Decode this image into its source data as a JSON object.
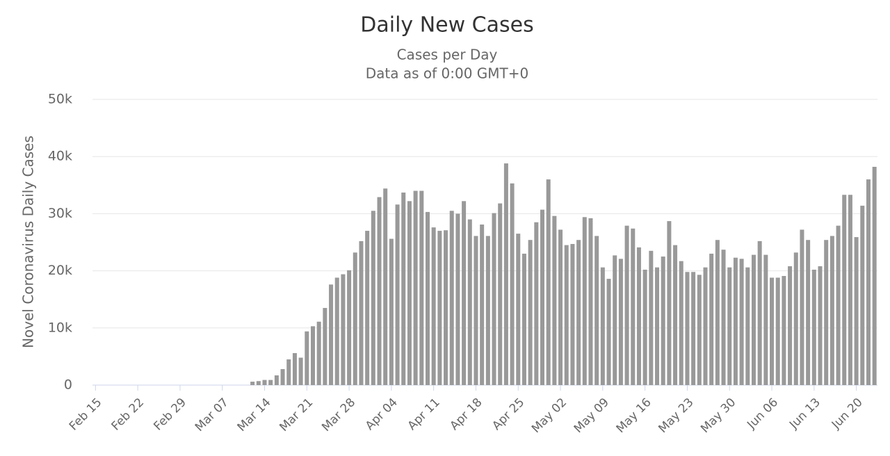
{
  "chart_data": {
    "type": "bar",
    "title": "Daily New Cases",
    "subtitle": [
      "Cases per Day",
      "Data as of 0:00 GMT+0"
    ],
    "y_label": "Novel Coronavirus Daily Cases",
    "color": "#999999",
    "grid": true,
    "ylim": [
      0,
      50000
    ],
    "yticks": [
      0,
      {
        "value": 10000,
        "label": "10k"
      },
      {
        "value": 20000,
        "label": "20k"
      },
      {
        "value": 30000,
        "label": "30k"
      },
      {
        "value": 40000,
        "label": "40k"
      },
      {
        "value": 50000,
        "label": "50k"
      }
    ],
    "categories": [
      "Feb 15",
      null,
      null,
      null,
      null,
      null,
      null,
      "Feb 22",
      null,
      null,
      null,
      null,
      null,
      null,
      "Feb 29",
      null,
      null,
      null,
      null,
      null,
      null,
      "Mar 07",
      null,
      null,
      null,
      null,
      null,
      null,
      "Mar 14",
      null,
      null,
      null,
      null,
      null,
      null,
      "Mar 21",
      null,
      null,
      null,
      null,
      null,
      null,
      "Mar 28",
      null,
      null,
      null,
      null,
      null,
      null,
      "Apr 04",
      null,
      null,
      null,
      null,
      null,
      null,
      "Apr 11",
      null,
      null,
      null,
      null,
      null,
      null,
      "Apr 18",
      null,
      null,
      null,
      null,
      null,
      null,
      "Apr 25",
      null,
      null,
      null,
      null,
      null,
      null,
      "May 02",
      null,
      null,
      null,
      null,
      null,
      null,
      "May 09",
      null,
      null,
      null,
      null,
      null,
      null,
      "May 16",
      null,
      null,
      null,
      null,
      null,
      null,
      "May 23",
      null,
      null,
      null,
      null,
      null,
      null,
      "May 30",
      null,
      null,
      null,
      null,
      null,
      null,
      "Jun 06",
      null,
      null,
      null,
      null,
      null,
      null,
      "Jun 13",
      null,
      null,
      null,
      null,
      null,
      null,
      "Jun 20",
      null,
      null,
      null
    ],
    "values": [
      0,
      0,
      0,
      0,
      0,
      0,
      0,
      0,
      0,
      0,
      0,
      0,
      0,
      0,
      0,
      0,
      0,
      0,
      0,
      0,
      0,
      0,
      0,
      0,
      0,
      0,
      600,
      700,
      900,
      900,
      1700,
      2800,
      4500,
      5600,
      4800,
      9400,
      10300,
      11100,
      13500,
      17600,
      18800,
      19400,
      20100,
      23200,
      25200,
      27000,
      30500,
      32900,
      34400,
      25600,
      31600,
      33700,
      32200,
      34000,
      34000,
      30300,
      27600,
      27000,
      27100,
      30500,
      30000,
      32200,
      29000,
      26100,
      28100,
      26100,
      30100,
      31800,
      38800,
      35300,
      26500,
      23000,
      25400,
      28500,
      30700,
      36000,
      29600,
      27200,
      24500,
      24700,
      25400,
      29400,
      29200,
      26100,
      20600,
      18600,
      22700,
      22100,
      27900,
      27400,
      24100,
      20200,
      23500,
      20600,
      22500,
      28700,
      24500,
      21700,
      19800,
      19800,
      19300,
      20600,
      23000,
      25400,
      23700,
      20600,
      22300,
      22100,
      20600,
      22800,
      25200,
      22800,
      18800,
      18800,
      19100,
      20800,
      23200,
      27200,
      25400,
      20200,
      20800,
      25400,
      26100,
      27900,
      33300,
      33300,
      25900,
      31400,
      36000,
      38200
    ]
  }
}
